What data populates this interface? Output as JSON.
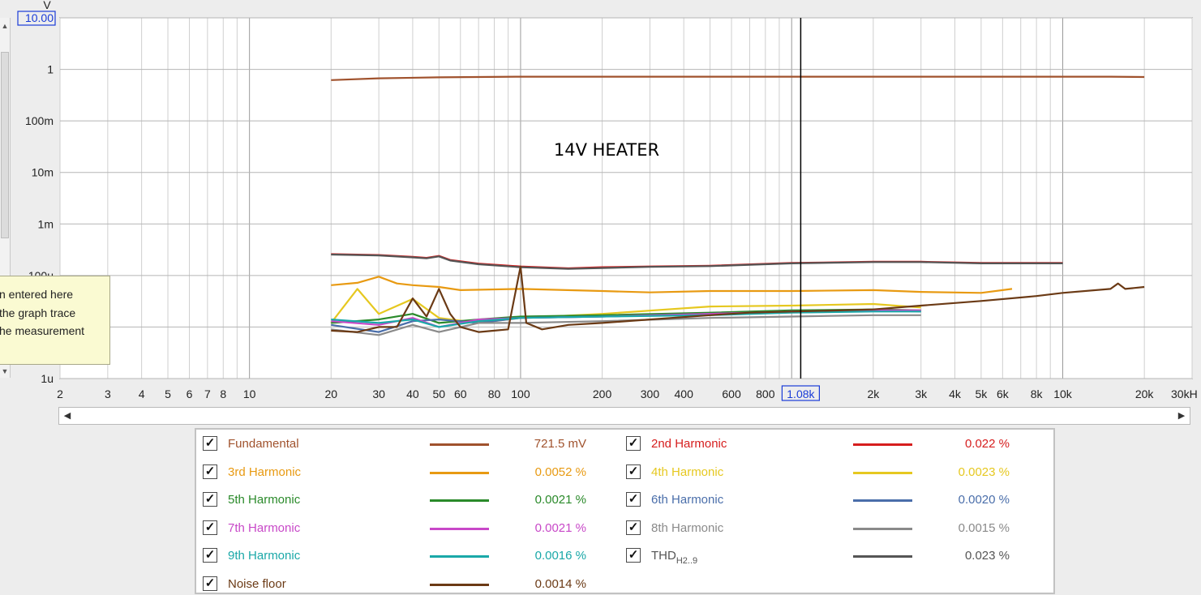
{
  "chart_data": {
    "type": "line",
    "title": "14V HEATER",
    "x_scale": "log",
    "y_scale": "log",
    "xlim": [
      2,
      30000
    ],
    "ylim": [
      1e-06,
      10
    ],
    "y_unit": "V",
    "y_ticks": [
      {
        "v": 10,
        "label": "10.00",
        "boxed": true
      },
      {
        "v": 1,
        "label": "1"
      },
      {
        "v": 0.1,
        "label": "100m"
      },
      {
        "v": 0.01,
        "label": "10m"
      },
      {
        "v": 0.001,
        "label": "1m"
      },
      {
        "v": 0.0001,
        "label": "100u"
      },
      {
        "v": 1e-06,
        "label": "1u"
      }
    ],
    "x_ticks": [
      {
        "v": 2,
        "label": "2"
      },
      {
        "v": 3,
        "label": "3"
      },
      {
        "v": 4,
        "label": "4"
      },
      {
        "v": 5,
        "label": "5"
      },
      {
        "v": 6,
        "label": "6"
      },
      {
        "v": 7,
        "label": "7"
      },
      {
        "v": 8,
        "label": "8"
      },
      {
        "v": 10,
        "label": "10"
      },
      {
        "v": 20,
        "label": "20"
      },
      {
        "v": 30,
        "label": "30"
      },
      {
        "v": 40,
        "label": "40"
      },
      {
        "v": 50,
        "label": "50"
      },
      {
        "v": 60,
        "label": "60"
      },
      {
        "v": 80,
        "label": "80"
      },
      {
        "v": 100,
        "label": "100"
      },
      {
        "v": 200,
        "label": "200"
      },
      {
        "v": 300,
        "label": "300"
      },
      {
        "v": 400,
        "label": "400"
      },
      {
        "v": 600,
        "label": "600"
      },
      {
        "v": 800,
        "label": "800"
      },
      {
        "v": 1080,
        "label": "1.08k",
        "boxed": true
      },
      {
        "v": 2000,
        "label": "2k"
      },
      {
        "v": 3000,
        "label": "3k"
      },
      {
        "v": 4000,
        "label": "4k"
      },
      {
        "v": 5000,
        "label": "5k"
      },
      {
        "v": 6000,
        "label": "6k"
      },
      {
        "v": 8000,
        "label": "8k"
      },
      {
        "v": 10000,
        "label": "10k"
      },
      {
        "v": 20000,
        "label": "20k"
      },
      {
        "v": 30000,
        "label": "30kH"
      }
    ],
    "cursor_x": 1080,
    "grid": true,
    "series": [
      {
        "name": "Fundamental",
        "color": "#a0522d",
        "x": [
          20,
          30,
          50,
          100,
          200,
          500,
          1000,
          2000,
          5000,
          10000,
          15000,
          20000
        ],
        "y": [
          0.62,
          0.67,
          0.7,
          0.72,
          0.72,
          0.72,
          0.72,
          0.72,
          0.72,
          0.72,
          0.72,
          0.71
        ]
      },
      {
        "name": "2nd Harmonic",
        "color": "#d61e1e",
        "x": [
          20,
          30,
          40,
          45,
          50,
          55,
          70,
          100,
          150,
          200,
          300,
          500,
          1000,
          2000,
          3000,
          5000,
          10000
        ],
        "y": [
          0.00026,
          0.00025,
          0.00023,
          0.00022,
          0.00024,
          0.0002,
          0.00017,
          0.00015,
          0.000138,
          0.000145,
          0.00015,
          0.000155,
          0.000175,
          0.000185,
          0.000185,
          0.000175,
          0.000175
        ]
      },
      {
        "name": "THDH2..9",
        "color": "#555555",
        "x": [
          20,
          30,
          40,
          45,
          50,
          55,
          70,
          100,
          150,
          200,
          300,
          500,
          1000,
          2000,
          3000,
          5000,
          10000
        ],
        "y": [
          0.000255,
          0.000245,
          0.000225,
          0.000215,
          0.000235,
          0.000195,
          0.000165,
          0.000145,
          0.000135,
          0.00014,
          0.000147,
          0.000152,
          0.000172,
          0.000182,
          0.000182,
          0.000172,
          0.000172
        ]
      },
      {
        "name": "3rd Harmonic",
        "color": "#e89a12",
        "x": [
          20,
          25,
          30,
          35,
          40,
          50,
          60,
          100,
          200,
          300,
          500,
          1000,
          2000,
          3000,
          5000,
          6500
        ],
        "y": [
          6.5e-05,
          7.2e-05,
          9.5e-05,
          7e-05,
          6.5e-05,
          6e-05,
          5.2e-05,
          5.5e-05,
          5e-05,
          4.7e-05,
          5e-05,
          5e-05,
          5.2e-05,
          4.8e-05,
          4.6e-05,
          5.5e-05
        ]
      },
      {
        "name": "4th Harmonic",
        "color": "#e6c820",
        "x": [
          20,
          25,
          30,
          40,
          50,
          70,
          100,
          200,
          500,
          1000,
          2000,
          3000
        ],
        "y": [
          1.2e-05,
          5.5e-05,
          1.8e-05,
          3.5e-05,
          1.5e-05,
          1.2e-05,
          1.5e-05,
          1.8e-05,
          2.5e-05,
          2.6e-05,
          2.8e-05,
          2.4e-05
        ]
      },
      {
        "name": "5th Harmonic",
        "color": "#2a8a2a",
        "x": [
          20,
          30,
          40,
          50,
          70,
          100,
          200,
          500,
          1000,
          2000,
          3000
        ],
        "y": [
          1.2e-05,
          1.4e-05,
          1.8e-05,
          1.2e-05,
          1.4e-05,
          1.6e-05,
          1.7e-05,
          1.9e-05,
          2.1e-05,
          2.2e-05,
          2.1e-05
        ]
      },
      {
        "name": "6th Harmonic",
        "color": "#4a6eaa",
        "x": [
          20,
          30,
          40,
          50,
          70,
          100,
          200,
          500,
          1000,
          2000,
          3000
        ],
        "y": [
          1.1e-05,
          8e-06,
          1.3e-05,
          1.4e-05,
          1.2e-05,
          1.5e-05,
          1.6e-05,
          1.8e-05,
          2e-05,
          2.1e-05,
          2e-05
        ]
      },
      {
        "name": "7th Harmonic",
        "color": "#c848c8",
        "x": [
          20,
          30,
          40,
          50,
          70,
          100,
          200,
          500,
          1000,
          2000,
          3000
        ],
        "y": [
          1.3e-05,
          1.1e-05,
          1.5e-05,
          1e-05,
          1.4e-05,
          1.5e-05,
          1.6e-05,
          1.8e-05,
          2e-05,
          2.1e-05,
          2.1e-05
        ]
      },
      {
        "name": "8th Harmonic",
        "color": "#8a8a8a",
        "x": [
          20,
          30,
          40,
          50,
          70,
          100,
          200,
          500,
          1000,
          2000,
          3000
        ],
        "y": [
          9e-06,
          7e-06,
          1.1e-05,
          8e-06,
          1.2e-05,
          1.2e-05,
          1.3e-05,
          1.5e-05,
          1.6e-05,
          1.7e-05,
          1.7e-05
        ]
      },
      {
        "name": "9th Harmonic",
        "color": "#1aa8a8",
        "x": [
          20,
          30,
          40,
          50,
          70,
          100,
          200,
          500,
          1000,
          2000,
          3000
        ],
        "y": [
          1.4e-05,
          1.2e-05,
          1.4e-05,
          1e-05,
          1.3e-05,
          1.5e-05,
          1.6e-05,
          1.7e-05,
          1.9e-05,
          2e-05,
          2e-05
        ]
      },
      {
        "name": "Noise floor",
        "color": "#6b3a15",
        "x": [
          20,
          25,
          30,
          35,
          40,
          45,
          50,
          55,
          60,
          70,
          80,
          90,
          100,
          105,
          120,
          150,
          200,
          300,
          500,
          700,
          1000,
          1500,
          2000,
          3000,
          5000,
          8000,
          10000,
          15000,
          16000,
          17000,
          20000
        ],
        "y": [
          8.5e-06,
          8e-06,
          1e-05,
          1e-05,
          3.6e-05,
          1.6e-05,
          5.5e-05,
          1.8e-05,
          1e-05,
          8e-06,
          8.5e-06,
          9e-06,
          0.00015,
          1.2e-05,
          9e-06,
          1.1e-05,
          1.2e-05,
          1.4e-05,
          1.7e-05,
          1.9e-05,
          2e-05,
          2.1e-05,
          2.2e-05,
          2.6e-05,
          3.2e-05,
          4e-05,
          4.6e-05,
          5.5e-05,
          7e-05,
          5.5e-05,
          6e-05
        ]
      }
    ]
  },
  "tooltip": {
    "lines": [
      "n entered here",
      "the graph trace",
      "he measurement"
    ]
  },
  "legend": {
    "items": [
      {
        "label": "Fundamental",
        "value": "721.5 mV",
        "color": "#a0522d",
        "checked": "✓"
      },
      {
        "label": "2nd Harmonic",
        "value": "0.022 %",
        "color": "#d61e1e",
        "checked": "✓"
      },
      {
        "label": "3rd Harmonic",
        "value": "0.0052 %",
        "color": "#e89a12",
        "checked": "✓"
      },
      {
        "label": "4th Harmonic",
        "value": "0.0023 %",
        "color": "#e6c820",
        "checked": "✓"
      },
      {
        "label": "5th Harmonic",
        "value": "0.0021 %",
        "color": "#2a8a2a",
        "checked": "✓"
      },
      {
        "label": "6th Harmonic",
        "value": "0.0020 %",
        "color": "#4a6eaa",
        "checked": "✓"
      },
      {
        "label": "7th Harmonic",
        "value": "0.0021 %",
        "color": "#c848c8",
        "checked": "✓"
      },
      {
        "label": "8th Harmonic",
        "value": "0.0015 %",
        "color": "#8a8a8a",
        "checked": "✓"
      },
      {
        "label": "9th Harmonic",
        "value": "0.0016 %",
        "color": "#1aa8a8",
        "checked": "✓"
      },
      {
        "label": "THD",
        "label_sub": "H2..9",
        "value": "0.023 %",
        "color": "#555555",
        "checked": "✓"
      },
      {
        "label": "Noise floor",
        "value": "0.0014 %",
        "color": "#6b3a15",
        "checked": "✓"
      }
    ]
  },
  "scroll": {
    "up_icon": "▲",
    "down_icon": "▼",
    "left_icon": "◀",
    "right_icon": "▶"
  }
}
